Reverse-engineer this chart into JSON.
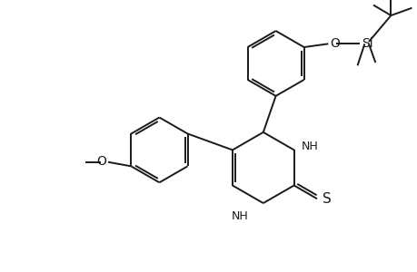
{
  "bg_color": "#ffffff",
  "line_color": "#1a1a1a",
  "line_width": 1.4,
  "figsize": [
    4.6,
    3.0
  ],
  "dpi": 100,
  "xlim": [
    0,
    10
  ],
  "ylim": [
    0,
    6.52
  ]
}
